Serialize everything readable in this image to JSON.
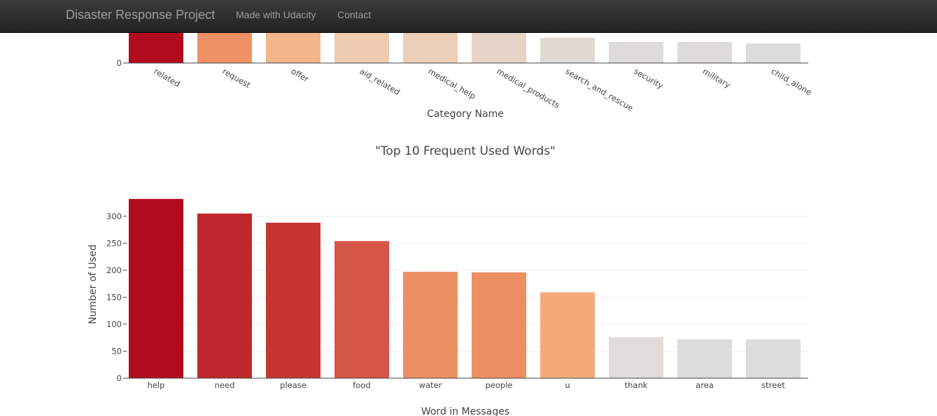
{
  "navbar": {
    "brand": "Disaster Response Project",
    "links": [
      "Made with Udacity",
      "Contact"
    ]
  },
  "chart_data": [
    {
      "type": "bar",
      "xlabel": "Category Name",
      "ylabel": "",
      "categories": [
        "related",
        "request",
        "offer",
        "aid_related",
        "medical_help",
        "medical_products",
        "search_and_rescue",
        "security",
        "military",
        "child_alone"
      ],
      "colors": [
        "#b10c1e",
        "#ef9165",
        "#f5b58b",
        "#f0ccb0",
        "#eccfb9",
        "#e6d4c8",
        "#e0d9d4",
        "#dddcdb",
        "#dddcdb",
        "#dcdcdc"
      ],
      "visible_y_ticks": [
        0
      ],
      "note_visible": "chart partially scrolled out of view; only bottom portion visible"
    },
    {
      "type": "bar",
      "title": "\"Top 10 Frequent Used Words\"",
      "xlabel": "Word in Messages",
      "ylabel": "Number of Used",
      "categories": [
        "help",
        "need",
        "please",
        "food",
        "water",
        "people",
        "u",
        "thank",
        "area",
        "street"
      ],
      "values": [
        332,
        305,
        288,
        254,
        197,
        196,
        159,
        76,
        72,
        72
      ],
      "colors": [
        "#b10c1e",
        "#c0272c",
        "#c73533",
        "#d55645",
        "#ed8f63",
        "#ed8f63",
        "#f3aa7b",
        "#e0dcd9",
        "#dcdcdc",
        "#dcdcdc"
      ],
      "yticks": [
        0,
        50,
        100,
        150,
        200,
        250,
        300
      ],
      "ylim": [
        0,
        349
      ],
      "grid": true
    }
  ]
}
